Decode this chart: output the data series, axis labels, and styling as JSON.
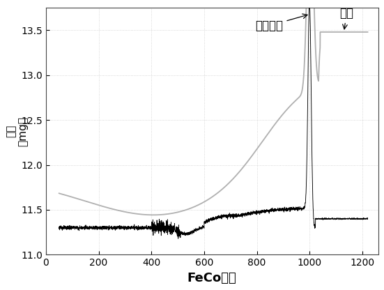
{
  "title": "",
  "xlabel": "FeCo样品",
  "ylabel": "质\n量\n（\nm\ng\n）",
  "xlim": [
    0,
    1260
  ],
  "ylim": [
    11.0,
    13.75
  ],
  "xticks": [
    0,
    200,
    400,
    600,
    800,
    1000,
    1200
  ],
  "yticks": [
    11.0,
    11.5,
    12.0,
    12.5,
    13.0,
    13.5
  ],
  "annotation1_text": "居里温度",
  "annotation2_text": "热重",
  "black_line_color": "#000000",
  "gray_line_color": "#b0b0b0",
  "background_color": "#ffffff",
  "font_size_label": 13,
  "font_size_tick": 10,
  "font_size_annot": 12
}
